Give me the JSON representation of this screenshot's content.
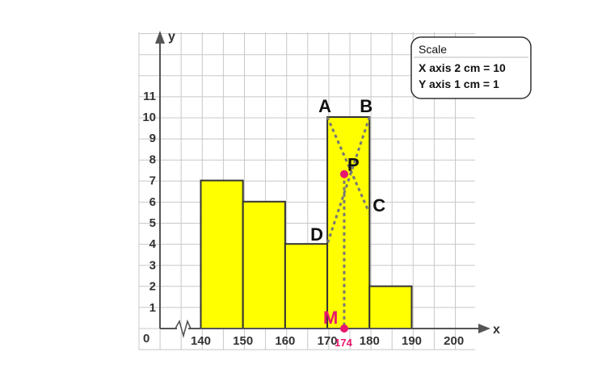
{
  "chart_data": {
    "type": "bar",
    "subtype": "histogram",
    "bins": [
      {
        "from": 140,
        "to": 150,
        "value": 7
      },
      {
        "from": 150,
        "to": 160,
        "value": 6
      },
      {
        "from": 160,
        "to": 170,
        "value": 4
      },
      {
        "from": 170,
        "to": 180,
        "value": 10
      },
      {
        "from": 180,
        "to": 190,
        "value": 2
      }
    ],
    "xlabel": "x",
    "ylabel": "y",
    "origin_label": "0",
    "x_ticks": [
      140,
      150,
      160,
      170,
      180,
      190,
      200
    ],
    "y_ticks": [
      1,
      2,
      3,
      4,
      5,
      6,
      7,
      8,
      9,
      10,
      11
    ],
    "xlim": [
      140,
      200
    ],
    "ylim": [
      0,
      11
    ],
    "grid": true,
    "axis_break": true,
    "annotations": {
      "A": [
        170,
        10
      ],
      "B": [
        180,
        10
      ],
      "C": [
        180,
        6
      ],
      "D": [
        170,
        4
      ],
      "P": [
        174,
        7.3
      ],
      "M": [
        174,
        0
      ]
    },
    "mode_label": "174",
    "mode_value": 174,
    "colors": {
      "bar": "#ffff00",
      "point": "#e8176e",
      "mode_text": "#e8176e"
    }
  },
  "scale": {
    "title": "Scale",
    "x_line": "X axis 2 cm = 10",
    "y_line": "Y axis 1 cm = 1"
  }
}
